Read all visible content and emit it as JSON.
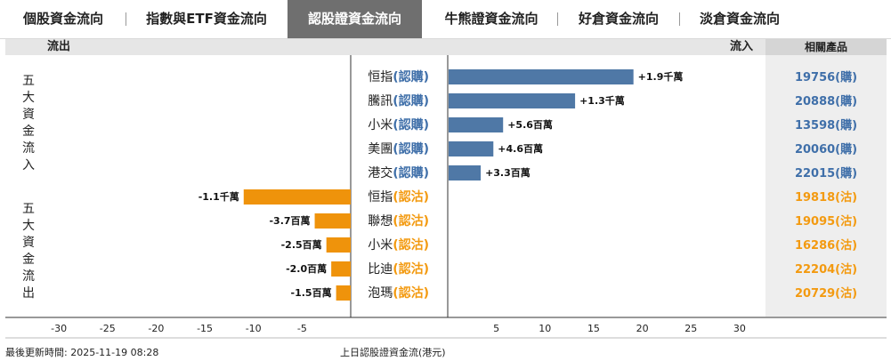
{
  "tabs": [
    {
      "label": "個股資金流向"
    },
    {
      "label": "指數與ETF資金流向"
    },
    {
      "label": "認股證資金流向",
      "active": true
    },
    {
      "label": "牛熊證資金流向"
    },
    {
      "label": "好倉資金流向"
    },
    {
      "label": "淡倉資金流向"
    }
  ],
  "header": {
    "outflow": "流出",
    "inflow": "流入",
    "related": "相關產品"
  },
  "sections": {
    "inflow": "五大資金流入",
    "outflow": "五大資金流出"
  },
  "footer": {
    "updated": "最後更新時間: 2025-11-19 08:28",
    "caption": "上日認股證資金流(港元)"
  },
  "colors": {
    "inflow": "#4f78a6",
    "outflow": "#ef930b",
    "call_text": "#3f6fa9",
    "put_text": "#f39a10"
  },
  "chart_data": {
    "type": "bar",
    "orientation": "horizontal",
    "unit": "百萬",
    "xlim": [
      -33,
      33
    ],
    "xticks": [
      -30,
      -25,
      -20,
      -15,
      -10,
      -5,
      5,
      10,
      15,
      20,
      25,
      30
    ],
    "grid": false,
    "series": [
      {
        "name": "流入",
        "rows": [
          {
            "name": "恒指",
            "tag": "(認購)",
            "value": 19,
            "label": "+1.9千萬",
            "product": "19756(購)"
          },
          {
            "name": "騰訊",
            "tag": "(認購)",
            "value": 13,
            "label": "+1.3千萬",
            "product": "20888(購)"
          },
          {
            "name": "小米",
            "tag": "(認購)",
            "value": 5.6,
            "label": "+5.6百萬",
            "product": "13598(購)"
          },
          {
            "name": "美團",
            "tag": "(認購)",
            "value": 4.6,
            "label": "+4.6百萬",
            "product": "20060(購)"
          },
          {
            "name": "港交",
            "tag": "(認購)",
            "value": 3.3,
            "label": "+3.3百萬",
            "product": "22015(購)"
          }
        ]
      },
      {
        "name": "流出",
        "rows": [
          {
            "name": "恒指",
            "tag": "(認沽)",
            "value": -11,
            "label": "-1.1千萬",
            "product": "19818(沽)"
          },
          {
            "name": "聯想",
            "tag": "(認沽)",
            "value": -3.7,
            "label": "-3.7百萬",
            "product": "19095(沽)"
          },
          {
            "name": "小米",
            "tag": "(認沽)",
            "value": -2.5,
            "label": "-2.5百萬",
            "product": "16286(沽)"
          },
          {
            "name": "比迪",
            "tag": "(認沽)",
            "value": -2.0,
            "label": "-2.0百萬",
            "product": "22204(沽)"
          },
          {
            "name": "泡瑪",
            "tag": "(認沽)",
            "value": -1.5,
            "label": "-1.5百萬",
            "product": "20729(沽)"
          }
        ]
      }
    ]
  }
}
